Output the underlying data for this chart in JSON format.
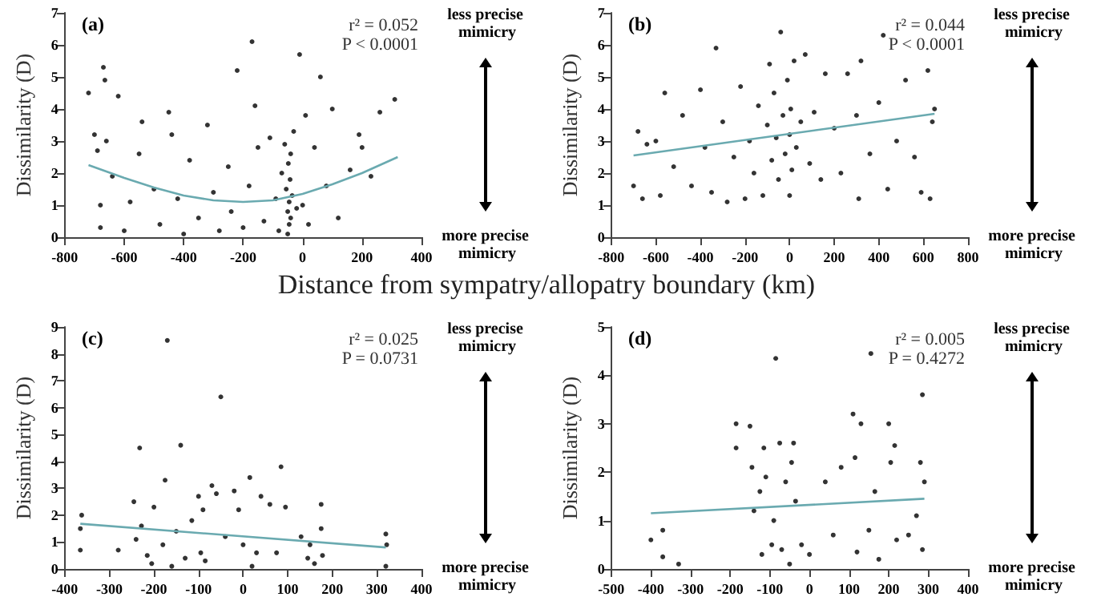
{
  "chart_data": [
    {
      "type": "scatter",
      "title": "(a)",
      "xlabel": "Distance from sympatry/allopatry boundary (km)",
      "ylabel": "Dissimilarity (D)",
      "xlim": [
        -800,
        400
      ],
      "xticks": [
        -800,
        -600,
        -400,
        -200,
        0,
        200,
        400
      ],
      "ylim": [
        0,
        7
      ],
      "yticks": [
        0,
        1,
        2,
        3,
        4,
        5,
        6,
        7
      ],
      "grid": false,
      "marker": "circle",
      "annotations": [
        "r² = 0.052",
        "P < 0.0001",
        "less precise mimicry",
        "more precise mimicry"
      ],
      "series": [
        {
          "color": "#000000",
          "x": [
            -720,
            -700,
            -690,
            -680,
            -680,
            -670,
            -665,
            -660,
            -640,
            -620,
            -600,
            -580,
            -550,
            -540,
            -500,
            -480,
            -450,
            -440,
            -420,
            -400,
            -380,
            -350,
            -320,
            -300,
            -280,
            -250,
            -240,
            -220,
            -200,
            -180,
            -170,
            -160,
            -150,
            -130,
            -110,
            -90,
            -80,
            -70,
            -60,
            -55,
            -50,
            -50,
            -48,
            -45,
            -45,
            -42,
            -40,
            -40,
            -35,
            -30,
            -20,
            -10,
            0,
            10,
            20,
            40,
            60,
            80,
            100,
            120,
            160,
            190,
            200,
            230,
            260,
            310
          ],
          "values": [
            4.5,
            3.2,
            2.7,
            1.0,
            0.3,
            5.3,
            4.9,
            3.0,
            1.9,
            4.4,
            0.2,
            1.1,
            2.6,
            3.6,
            1.5,
            0.4,
            3.9,
            3.2,
            1.2,
            0.1,
            2.4,
            0.6,
            3.5,
            1.4,
            0.2,
            2.2,
            0.8,
            5.2,
            0.3,
            1.6,
            6.1,
            4.1,
            2.8,
            0.5,
            3.1,
            1.2,
            0.2,
            2.0,
            2.9,
            1.5,
            0.8,
            0.1,
            2.3,
            1.1,
            0.4,
            1.8,
            2.6,
            0.6,
            1.3,
            3.3,
            0.9,
            5.7,
            1.0,
            3.8,
            0.4,
            2.8,
            5.0,
            1.6,
            4.0,
            0.6,
            2.1,
            3.2,
            2.8,
            1.9,
            3.9,
            4.3
          ]
        },
        {
          "type": "line",
          "marker": "none",
          "color": "#6aaab0",
          "x": [
            -720,
            -600,
            -500,
            -400,
            -300,
            -200,
            -100,
            0,
            100,
            200,
            320
          ],
          "values": [
            2.25,
            1.85,
            1.55,
            1.3,
            1.15,
            1.1,
            1.15,
            1.35,
            1.65,
            2.0,
            2.5
          ]
        }
      ]
    },
    {
      "type": "scatter",
      "title": "(b)",
      "ylabel": "Dissimilarity (D)",
      "xlim": [
        -800,
        800
      ],
      "xticks": [
        -800,
        -600,
        -400,
        -200,
        0,
        200,
        400,
        600,
        800
      ],
      "ylim": [
        0,
        7
      ],
      "yticks": [
        0,
        1,
        2,
        3,
        4,
        5,
        6,
        7
      ],
      "grid": false,
      "marker": "circle",
      "annotations": [
        "r² = 0.044",
        "P < 0.0001",
        "less precise mimicry",
        "more precise mimicry"
      ],
      "series": [
        {
          "color": "#000000",
          "x": [
            -700,
            -680,
            -660,
            -640,
            -600,
            -580,
            -560,
            -520,
            -480,
            -440,
            -400,
            -380,
            -350,
            -330,
            -300,
            -280,
            -250,
            -220,
            -200,
            -180,
            -160,
            -140,
            -120,
            -100,
            -90,
            -80,
            -70,
            -60,
            -50,
            -40,
            -30,
            -20,
            -10,
            0,
            0,
            5,
            10,
            20,
            30,
            50,
            70,
            90,
            110,
            140,
            160,
            200,
            230,
            260,
            300,
            310,
            320,
            360,
            400,
            420,
            440,
            480,
            520,
            560,
            590,
            620,
            630,
            640,
            650
          ],
          "values": [
            1.6,
            3.3,
            1.2,
            2.9,
            3.0,
            1.3,
            4.5,
            2.2,
            3.8,
            1.6,
            4.6,
            2.8,
            1.4,
            5.9,
            3.6,
            1.1,
            2.5,
            4.7,
            1.2,
            3.0,
            2.0,
            4.1,
            1.3,
            3.5,
            5.4,
            2.4,
            4.5,
            3.1,
            1.8,
            6.4,
            3.8,
            2.6,
            4.9,
            1.3,
            3.2,
            4.0,
            2.1,
            5.5,
            2.8,
            3.6,
            5.7,
            2.3,
            3.9,
            1.8,
            5.1,
            3.4,
            2.0,
            5.1,
            3.8,
            1.2,
            5.5,
            2.6,
            4.2,
            6.3,
            1.5,
            3.0,
            4.9,
            2.5,
            1.4,
            5.2,
            1.2,
            3.6,
            4.0
          ]
        },
        {
          "type": "line",
          "marker": "none",
          "color": "#6aaab0",
          "x": [
            -700,
            650
          ],
          "values": [
            2.55,
            3.85
          ]
        }
      ]
    },
    {
      "type": "scatter",
      "title": "(c)",
      "ylabel": "Dissimilarity (D)",
      "xlim": [
        -400,
        400
      ],
      "xticks": [
        -400,
        -300,
        -200,
        -100,
        0,
        100,
        200,
        300,
        400
      ],
      "ylim": [
        0,
        9
      ],
      "yticks": [
        0,
        1,
        2,
        3,
        4,
        5,
        6,
        7,
        8,
        9
      ],
      "grid": false,
      "marker": "circle",
      "annotations": [
        "r² = 0.025",
        "P = 0.0731",
        "less precise mimicry",
        "more precise mimicry"
      ],
      "series": [
        {
          "color": "#000000",
          "x": [
            -365,
            -365,
            -362,
            -280,
            -245,
            -240,
            -232,
            -228,
            -215,
            -205,
            -200,
            -180,
            -175,
            -170,
            -160,
            -150,
            -140,
            -130,
            -115,
            -100,
            -95,
            -90,
            -85,
            -70,
            -60,
            -50,
            -40,
            -20,
            -10,
            0,
            15,
            20,
            30,
            40,
            60,
            75,
            85,
            95,
            130,
            145,
            150,
            160,
            175,
            175,
            178,
            320,
            322,
            320
          ],
          "values": [
            0.7,
            1.5,
            2.0,
            0.7,
            2.5,
            1.1,
            4.5,
            1.6,
            0.5,
            0.2,
            2.3,
            0.9,
            3.3,
            8.5,
            0.1,
            1.4,
            4.6,
            0.4,
            1.8,
            2.7,
            0.6,
            2.2,
            0.3,
            3.1,
            2.8,
            6.4,
            1.2,
            2.9,
            2.2,
            0.9,
            3.4,
            0.1,
            0.6,
            2.7,
            2.4,
            0.6,
            3.8,
            2.3,
            1.2,
            0.4,
            0.9,
            0.2,
            2.4,
            1.5,
            0.5,
            1.3,
            0.9,
            0.1
          ]
        },
        {
          "type": "line",
          "marker": "none",
          "color": "#6aaab0",
          "x": [
            -365,
            320
          ],
          "values": [
            1.68,
            0.8
          ]
        }
      ]
    },
    {
      "type": "scatter",
      "title": "(d)",
      "ylabel": "Dissimilarity (D)",
      "xlim": [
        -500,
        400
      ],
      "xticks": [
        -500,
        -400,
        -300,
        -200,
        -100,
        0,
        100,
        200,
        300,
        400
      ],
      "ylim": [
        0,
        5
      ],
      "yticks": [
        0,
        1,
        2,
        3,
        4,
        5
      ],
      "grid": false,
      "marker": "circle",
      "annotations": [
        "r² = 0.005",
        "P = 0.4272",
        "less precise mimicry",
        "more precise mimicry"
      ],
      "series": [
        {
          "color": "#000000",
          "x": [
            -400,
            -370,
            -370,
            -330,
            -185,
            -185,
            -150,
            -145,
            -140,
            -125,
            -120,
            -115,
            -110,
            -95,
            -90,
            -85,
            -75,
            -70,
            -60,
            -50,
            -45,
            -40,
            -35,
            -20,
            0,
            40,
            60,
            80,
            110,
            115,
            120,
            130,
            150,
            155,
            165,
            175,
            200,
            205,
            215,
            220,
            250,
            270,
            280,
            285,
            285,
            290
          ],
          "values": [
            0.6,
            0.8,
            0.25,
            0.1,
            3.0,
            2.5,
            2.95,
            2.1,
            1.2,
            1.6,
            0.3,
            2.5,
            1.9,
            0.5,
            1.0,
            4.35,
            2.6,
            0.4,
            1.8,
            0.1,
            2.2,
            2.6,
            1.4,
            0.5,
            0.3,
            1.8,
            0.7,
            2.1,
            3.2,
            2.3,
            0.35,
            3.0,
            0.8,
            4.45,
            1.6,
            0.2,
            3.0,
            2.2,
            2.55,
            0.6,
            0.7,
            1.1,
            2.2,
            3.6,
            0.4,
            1.8
          ]
        },
        {
          "type": "line",
          "marker": "none",
          "color": "#6aaab0",
          "x": [
            -400,
            290
          ],
          "values": [
            1.15,
            1.45
          ]
        }
      ]
    }
  ]
}
